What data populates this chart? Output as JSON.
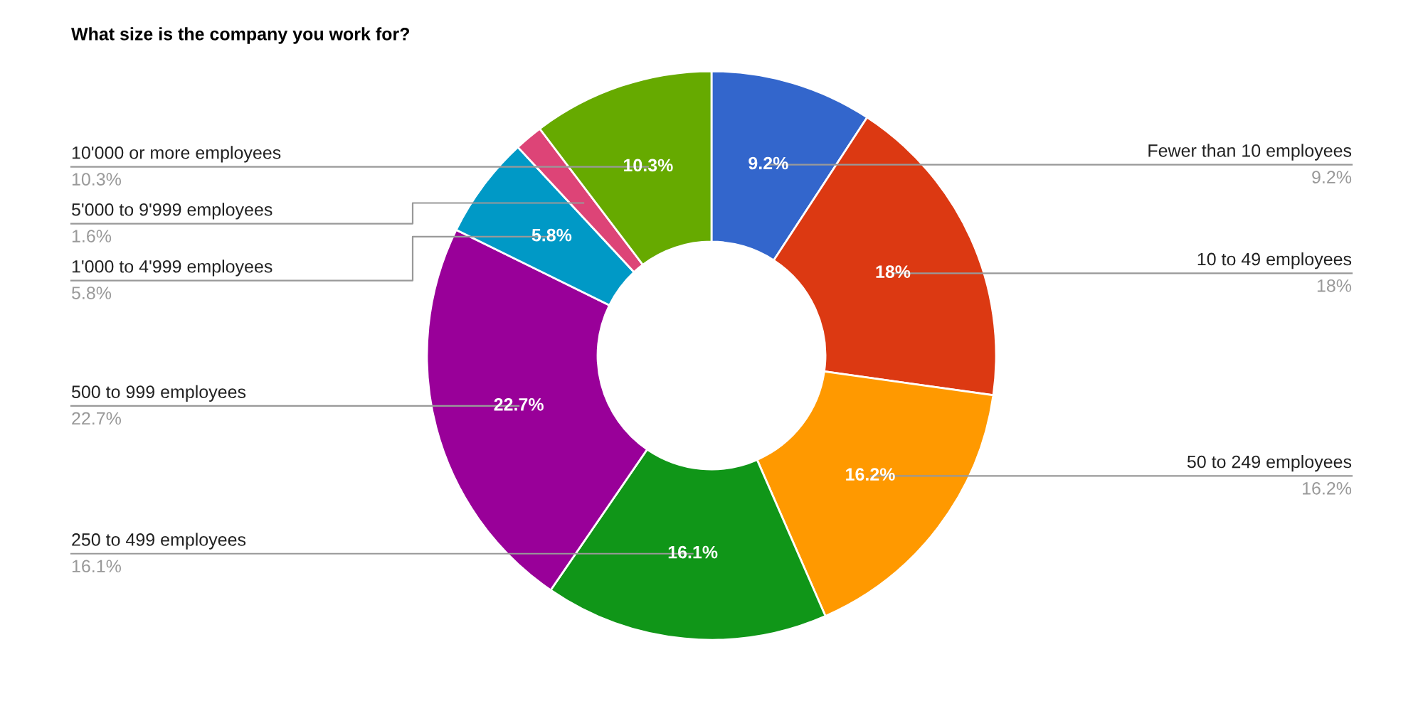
{
  "chart_data": {
    "type": "donut",
    "title": "What size is the company you work for?",
    "categories": [
      "Fewer than 10 employees",
      "10 to 49 employees",
      "50 to 249 employees",
      "250 to 499 employees",
      "500 to 999 employees",
      "1'000 to 4'999 employees",
      "5'000 to 9'999 employees",
      "10'000 or more employees"
    ],
    "values": [
      9.2,
      18,
      16.2,
      16.1,
      22.7,
      5.8,
      1.6,
      10.3
    ],
    "colors": [
      "#3366cc",
      "#dc3912",
      "#ff9900",
      "#109618",
      "#990099",
      "#0099c6",
      "#dd4477",
      "#66aa00"
    ],
    "value_labels": [
      "9.2%",
      "18%",
      "16.2%",
      "16.1%",
      "22.7%",
      "5.8%",
      null,
      "10.3%"
    ],
    "annotations": [
      "9.2%",
      "18%",
      "16.2%",
      "16.1%",
      "22.7%",
      "5.8%",
      "1.6%",
      "10.3%"
    ]
  }
}
